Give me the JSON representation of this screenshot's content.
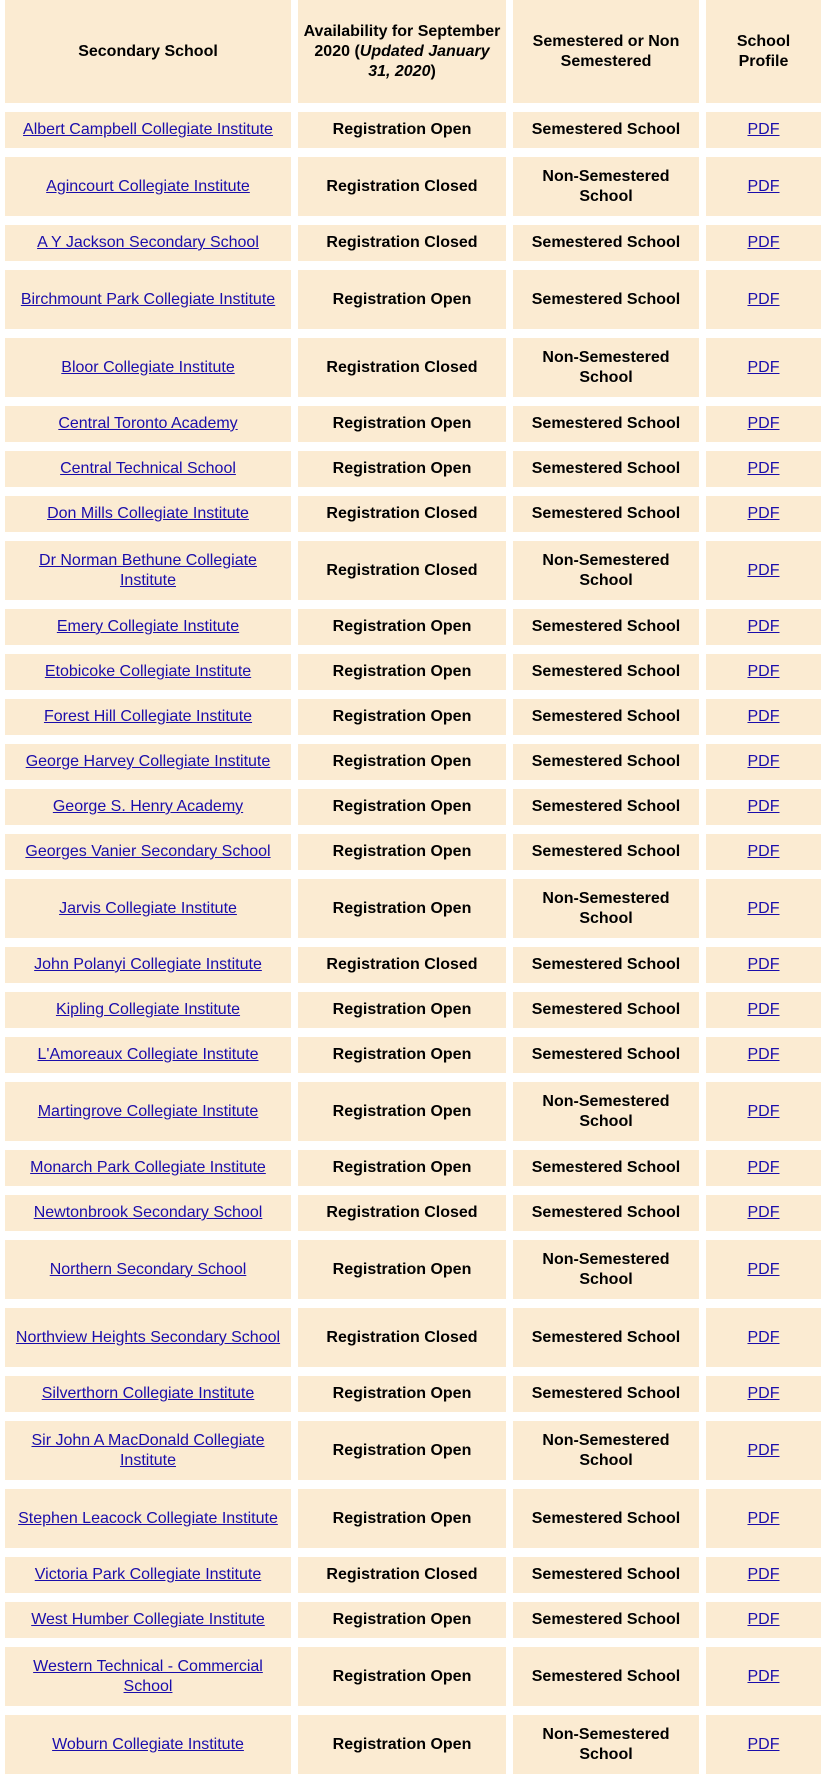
{
  "header": {
    "school": "Secondary School",
    "availability_line1": "Availability for September 2020 (",
    "availability_italic": "Updated January 31, 2020",
    "availability_close": ")",
    "semestered": "Semestered or Non Semestered",
    "profile": "School Profile"
  },
  "colors": {
    "cell_bg": "#fbebd2",
    "link": "#1a0dab"
  },
  "rows": [
    {
      "school": "Albert Campbell Collegiate Institute",
      "availability": "Registration Open",
      "type": "Semestered School",
      "profile": "PDF",
      "tall": false
    },
    {
      "school": "Agincourt Collegiate Institute",
      "availability": "Registration Closed",
      "type": "Non-Semestered School",
      "profile": "PDF",
      "tall": true
    },
    {
      "school": "A Y Jackson Secondary School",
      "availability": "Registration Closed",
      "type": "Semestered School",
      "profile": "PDF",
      "tall": false
    },
    {
      "school": "Birchmount Park Collegiate Institute",
      "availability": "Registration Open",
      "type": "Semestered School",
      "profile": "PDF",
      "tall": true
    },
    {
      "school": "Bloor Collegiate Institute",
      "availability": "Registration Closed",
      "type": "Non-Semestered School",
      "profile": "PDF",
      "tall": true
    },
    {
      "school": "Central Toronto Academy",
      "availability": "Registration Open",
      "type": "Semestered School",
      "profile": "PDF",
      "tall": false
    },
    {
      "school": "Central Technical School",
      "availability": "Registration Open",
      "type": "Semestered School",
      "profile": "PDF",
      "tall": false
    },
    {
      "school": "Don Mills Collegiate Institute",
      "availability": "Registration Closed",
      "type": "Semestered School",
      "profile": "PDF",
      "tall": false
    },
    {
      "school": "Dr Norman Bethune Collegiate Institute",
      "availability": "Registration Closed",
      "type": "Non-Semestered School",
      "profile": "PDF",
      "tall": true
    },
    {
      "school": "Emery Collegiate Institute",
      "availability": "Registration Open",
      "type": "Semestered School",
      "profile": "PDF",
      "tall": false
    },
    {
      "school": "Etobicoke Collegiate Institute",
      "availability": "Registration Open",
      "type": "Semestered School",
      "profile": "PDF",
      "tall": false
    },
    {
      "school": "Forest Hill Collegiate Institute",
      "availability": "Registration Open",
      "type": "Semestered School",
      "profile": "PDF",
      "tall": false
    },
    {
      "school": "George Harvey Collegiate Institute",
      "availability": "Registration Open",
      "type": "Semestered School",
      "profile": "PDF",
      "tall": false
    },
    {
      "school": "George S. Henry Academy",
      "availability": "Registration Open",
      "type": "Semestered School",
      "profile": "PDF",
      "tall": false
    },
    {
      "school": "Georges Vanier Secondary School",
      "availability": "Registration Open",
      "type": "Semestered School",
      "profile": "PDF",
      "tall": false
    },
    {
      "school": "Jarvis Collegiate Institute",
      "availability": "Registration Open",
      "type": "Non-Semestered School",
      "profile": "PDF",
      "tall": true
    },
    {
      "school": "John Polanyi Collegiate Institute",
      "availability": "Registration Closed",
      "type": "Semestered School",
      "profile": "PDF",
      "tall": false
    },
    {
      "school": "Kipling Collegiate Institute",
      "availability": "Registration Open",
      "type": "Semestered School",
      "profile": "PDF",
      "tall": false
    },
    {
      "school": "L'Amoreaux Collegiate Institute",
      "availability": "Registration Open",
      "type": "Semestered School",
      "profile": "PDF",
      "tall": false
    },
    {
      "school": "Martingrove Collegiate Institute",
      "availability": "Registration Open",
      "type": "Non-Semestered School",
      "profile": "PDF",
      "tall": true
    },
    {
      "school": "Monarch Park Collegiate Institute",
      "availability": "Registration Open",
      "type": "Semestered School",
      "profile": "PDF",
      "tall": false
    },
    {
      "school": "Newtonbrook Secondary School",
      "availability": "Registration Closed",
      "type": "Semestered School",
      "profile": "PDF",
      "tall": false
    },
    {
      "school": "Northern Secondary School",
      "availability": "Registration Open",
      "type": "Non-Semestered School",
      "profile": "PDF",
      "tall": true
    },
    {
      "school": "Northview Heights Secondary School",
      "availability": "Registration Closed",
      "type": "Semestered School",
      "profile": "PDF",
      "tall": true
    },
    {
      "school": "Silverthorn Collegiate Institute",
      "availability": "Registration Open",
      "type": "Semestered School",
      "profile": "PDF",
      "tall": false
    },
    {
      "school": "Sir John A MacDonald Collegiate Institute",
      "availability": "Registration Open",
      "type": "Non-Semestered School",
      "profile": "PDF",
      "tall": true
    },
    {
      "school": "Stephen Leacock Collegiate Institute",
      "availability": "Registration Open",
      "type": "Semestered School",
      "profile": "PDF",
      "tall": true
    },
    {
      "school": "Victoria Park Collegiate Institute",
      "availability": "Registration Closed",
      "type": "Semestered School",
      "profile": "PDF",
      "tall": false
    },
    {
      "school": "West Humber Collegiate Institute",
      "availability": "Registration Open",
      "type": "Semestered School",
      "profile": "PDF",
      "tall": false
    },
    {
      "school": "Western Technical - Commercial School",
      "availability": "Registration Open",
      "type": "Semestered School",
      "profile": "PDF",
      "tall": true
    },
    {
      "school": "Woburn Collegiate Institute",
      "availability": "Registration Open",
      "type": "Non-Semestered School",
      "profile": "PDF",
      "tall": true
    }
  ]
}
